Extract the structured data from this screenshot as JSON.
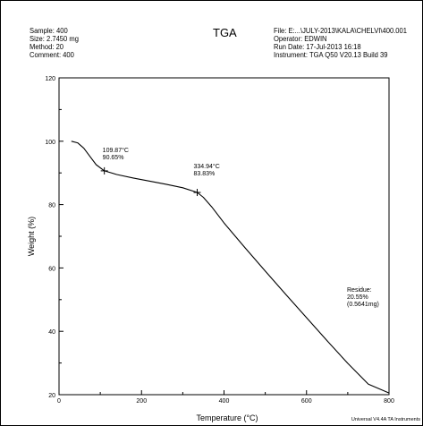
{
  "header": {
    "left": [
      "Sample: 400",
      "Size:  2.7450 mg",
      "Method: 20",
      "Comment: 400"
    ],
    "title": "TGA",
    "right": [
      "File: E:...\\JULY-2013\\KALA\\CHELVI\\400.001",
      "Operator: EDWIN",
      "Run Date: 17-Jul-2013 16:18",
      "Instrument: TGA Q50 V20.13 Build 39"
    ]
  },
  "footer": {
    "software": "Universal V4.4A TA Instruments"
  },
  "chart_data": {
    "type": "line",
    "title": "TGA",
    "xlabel": "Temperature (°C)",
    "ylabel": "Weight (%)",
    "xlim": [
      0,
      800
    ],
    "ylim": [
      20,
      120
    ],
    "xticks": [
      "0",
      "200",
      "400",
      "600",
      "800"
    ],
    "yticks": [
      "20",
      "40",
      "60",
      "80",
      "100",
      "120"
    ],
    "grid": false,
    "series": [
      {
        "x": [
          30,
          45,
          60,
          75,
          90,
          110,
          140,
          180,
          220,
          260,
          300,
          335,
          350,
          370,
          400,
          450,
          500,
          550,
          600,
          650,
          700,
          750,
          800
        ],
        "y": [
          100,
          99.5,
          97.8,
          95.2,
          92.6,
          90.65,
          89.5,
          88.4,
          87.4,
          86.4,
          85.3,
          83.83,
          82.3,
          79.3,
          74.2,
          66.5,
          59.0,
          51.6,
          44.3,
          37.0,
          29.9,
          23.3,
          20.55
        ]
      }
    ],
    "markers": [
      {
        "x": 109.87,
        "y": 90.65,
        "label_line1": "109.87°C",
        "label_line2": "90.65%"
      },
      {
        "x": 334.94,
        "y": 83.83,
        "label_line1": "334.94°C",
        "label_line2": "83.83%"
      }
    ],
    "annotations": [
      {
        "lines": [
          "Residue:",
          "20.55%",
          "(0.5641mg)"
        ],
        "x": 800,
        "y": 20.55
      }
    ]
  }
}
